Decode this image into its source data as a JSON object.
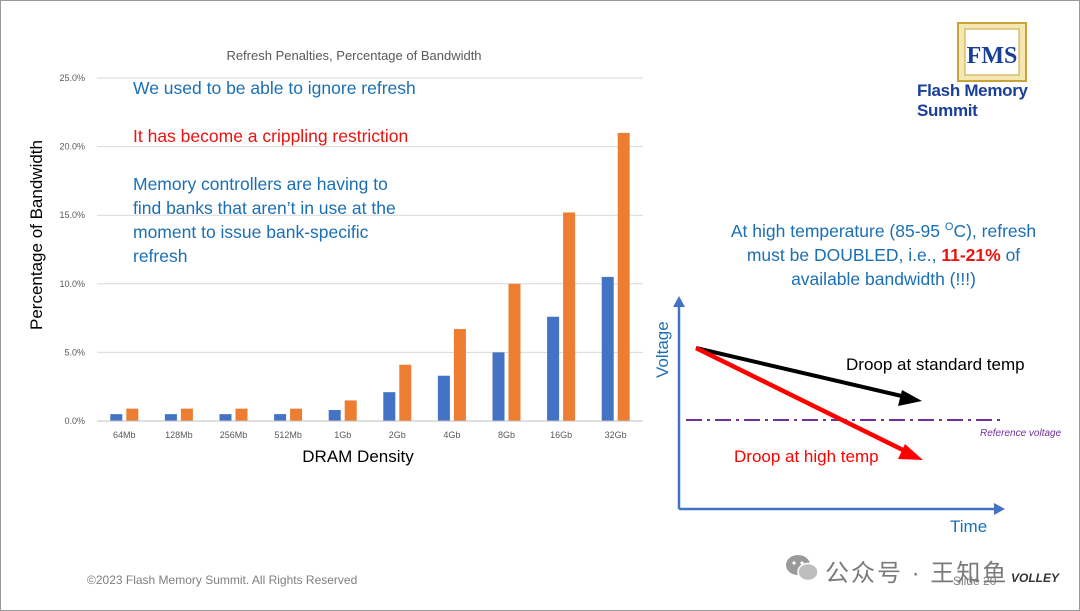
{
  "chart_data": {
    "type": "bar",
    "title": "Refresh Penalties, Percentage of Bandwidth",
    "xlabel": "DRAM Density",
    "ylabel": "Percentage of Bandwidth",
    "ylim": [
      0,
      25
    ],
    "yticks": [
      "0.0%",
      "5.0%",
      "10.0%",
      "15.0%",
      "20.0%",
      "25.0%"
    ],
    "categories": [
      "64Mb",
      "128Mb",
      "256Mb",
      "512Mb",
      "1Gb",
      "2Gb",
      "4Gb",
      "8Gb",
      "16Gb",
      "32Gb"
    ],
    "grid": true,
    "series": [
      {
        "color": "#4472c4",
        "values": [
          0.5,
          0.5,
          0.5,
          0.5,
          0.8,
          2.1,
          3.3,
          5.0,
          7.6,
          10.5
        ]
      },
      {
        "color": "#ed7d31",
        "values": [
          0.9,
          0.9,
          0.9,
          0.9,
          1.5,
          4.1,
          6.7,
          10.0,
          15.2,
          21.0
        ]
      }
    ]
  },
  "bullets": {
    "line1": "We used to be able to ignore refresh",
    "line2": "It has become a crippling restriction",
    "line3": [
      "Memory controllers are having to",
      "find banks that aren’t in use at the",
      "moment to issue bank-specific",
      "refresh"
    ]
  },
  "note": {
    "part1": "At high temperature (85-95 ",
    "degree": "O",
    "part2": "C), refresh",
    "part3": "must be DOUBLED, i.e., ",
    "highlight": "11-21%",
    "part4": " of",
    "part5": "available bandwidth (!!!)"
  },
  "diagram": {
    "y_axis_label": "Voltage",
    "x_axis_label": "Time",
    "standard_label": "Droop at standard temp",
    "high_label": "Droop at high temp",
    "reference_label": "Reference voltage"
  },
  "logo": {
    "text": "Flash Memory Summit",
    "mark": "FMS"
  },
  "footer": {
    "copyright": "©2023 Flash Memory Summit. All Rights Reserved",
    "slide": "Slide 20",
    "brand": "VOLLEY"
  },
  "watermark": {
    "text": "公众号 · 王知鱼"
  },
  "colors": {
    "blue_text": "#1a6fb5",
    "red_text": "#e8130f",
    "axis_blue": "#4472c4",
    "reference_purple": "#7030a0",
    "logo_blue": "#1a3f9a"
  }
}
